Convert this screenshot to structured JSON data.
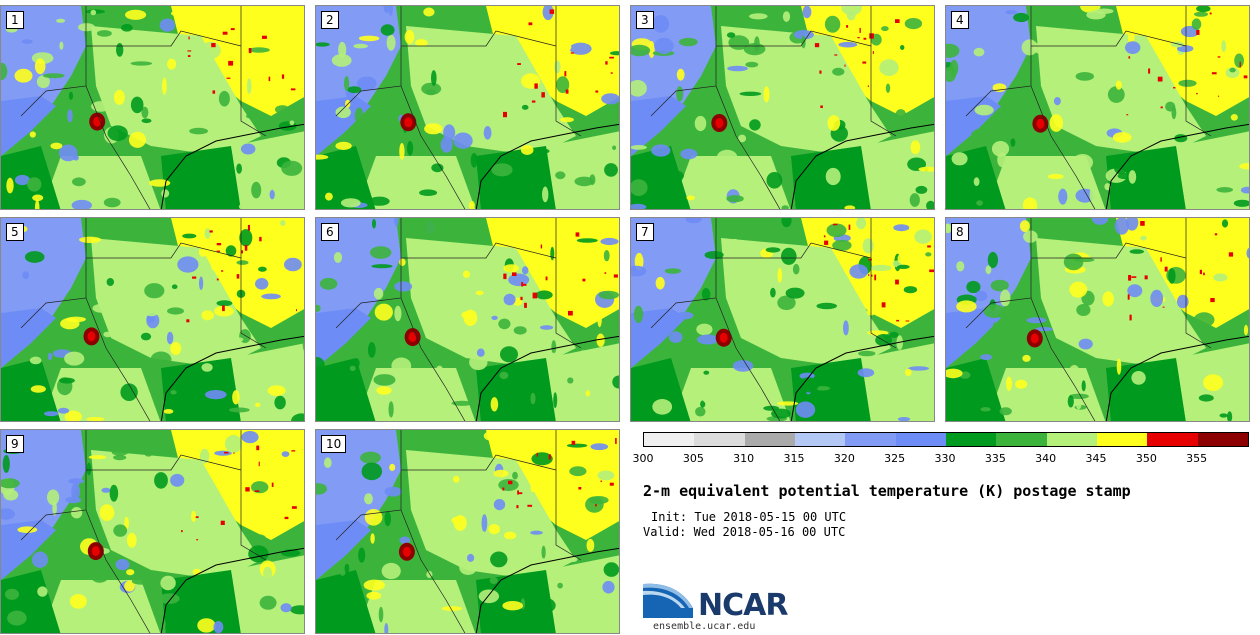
{
  "panels": [
    {
      "label": "1"
    },
    {
      "label": "2"
    },
    {
      "label": "3"
    },
    {
      "label": "4"
    },
    {
      "label": "5"
    },
    {
      "label": "6"
    },
    {
      "label": "7"
    },
    {
      "label": "8"
    },
    {
      "label": "9"
    },
    {
      "label": "10"
    }
  ],
  "colorbar": {
    "colors": [
      "#f0f0f0",
      "#dcdcdc",
      "#aaaaaa",
      "#b4c8f5",
      "#829cf5",
      "#6e8cf5",
      "#009a1e",
      "#3cb43c",
      "#b4f07a",
      "#ffff1e",
      "#e60000",
      "#8c0000"
    ],
    "ticks": [
      "300",
      "305",
      "310",
      "315",
      "320",
      "325",
      "330",
      "335",
      "340",
      "345",
      "350",
      "355"
    ]
  },
  "title": "2-m equivalent potential temperature (K) postage stamp",
  "init": "Init: Tue 2018-05-15 00 UTC",
  "valid": "Valid: Wed 2018-05-16 00 UTC",
  "logo": {
    "text": "NCAR",
    "url": "ensemble.ucar.edu"
  }
}
